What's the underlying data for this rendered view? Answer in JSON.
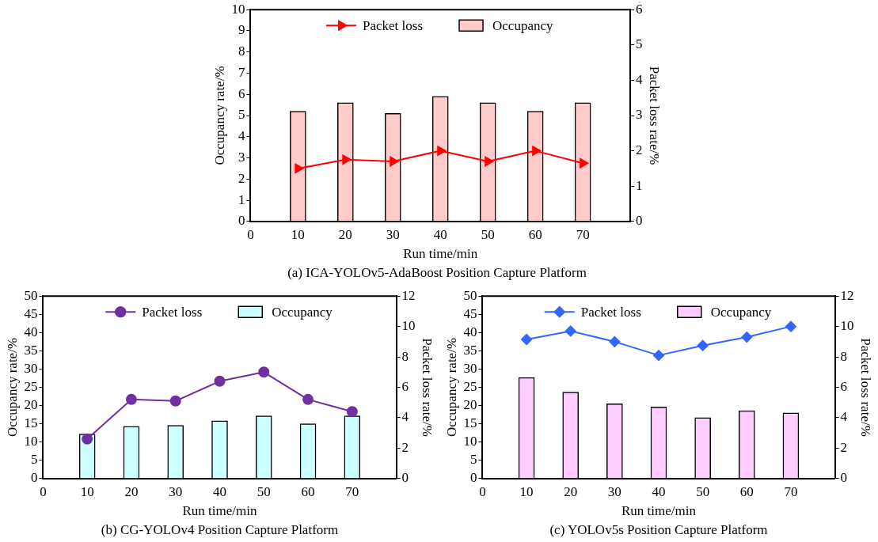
{
  "chart_data": [
    {
      "type": "bar",
      "title": "(a) ICA-YOLOv5-AdaBoost Position Capture Platform",
      "xlabel": "Run time/min",
      "ylabel": "Occupancy rate/%",
      "y2label": "Packet loss rate/%",
      "x": [
        10,
        20,
        30,
        40,
        50,
        60,
        70
      ],
      "series": [
        {
          "name": "Packet loss",
          "type": "line",
          "axis": "y2",
          "marker": "triangle",
          "color": "#ff0000",
          "values": [
            1.5,
            1.75,
            1.7,
            2.0,
            1.7,
            2.0,
            1.65
          ]
        },
        {
          "name": "Occupancy",
          "color": "#ffcccc",
          "values": [
            5.2,
            5.6,
            5.1,
            5.9,
            5.6,
            5.2,
            5.6
          ]
        }
      ],
      "xlim": [
        0,
        80
      ],
      "xticks": [
        0,
        10,
        20,
        30,
        40,
        50,
        60,
        70
      ],
      "ylim": [
        0,
        10
      ],
      "yticks": [
        0,
        1,
        2,
        3,
        4,
        5,
        6,
        7,
        8,
        9,
        10
      ],
      "y2lim": [
        0,
        6
      ],
      "y2ticks": [
        0,
        1,
        2,
        3,
        4,
        5,
        6
      ],
      "legend": "top"
    },
    {
      "type": "bar",
      "title": "(b) CG-YOLOv4 Position Capture Platform",
      "xlabel": "Run time/min",
      "ylabel": "Occupancy rate/%",
      "y2label": "Packet loss rate/%",
      "x": [
        10,
        20,
        30,
        40,
        50,
        60,
        70
      ],
      "series": [
        {
          "name": "Packet loss",
          "type": "line",
          "axis": "y2",
          "marker": "circle",
          "color": "#7030a0",
          "values": [
            2.6,
            5.2,
            5.1,
            6.4,
            7.0,
            5.2,
            4.4
          ]
        },
        {
          "name": "Occupancy",
          "color": "#ccffff",
          "values": [
            12.2,
            14.3,
            14.6,
            15.8,
            17.2,
            15.0,
            17.2
          ]
        }
      ],
      "xlim": [
        0,
        80
      ],
      "xticks": [
        0,
        10,
        20,
        30,
        40,
        50,
        60,
        70
      ],
      "ylim": [
        0,
        50
      ],
      "yticks": [
        0,
        5,
        10,
        15,
        20,
        25,
        30,
        35,
        40,
        45,
        50
      ],
      "y2lim": [
        0,
        12
      ],
      "y2ticks": [
        0,
        2,
        4,
        6,
        8,
        10,
        12
      ],
      "legend": "top"
    },
    {
      "type": "bar",
      "title": "(c) YOLOv5s Position Capture Platform",
      "xlabel": "Run time/min",
      "ylabel": "Occupancy rate/%",
      "y2label": "Packet loss rate/%",
      "x": [
        10,
        20,
        30,
        40,
        50,
        60,
        70
      ],
      "series": [
        {
          "name": "Packet loss",
          "type": "line",
          "axis": "y2",
          "marker": "diamond",
          "color": "#3366ff",
          "values": [
            9.15,
            9.7,
            9.0,
            8.1,
            8.75,
            9.3,
            10.0
          ]
        },
        {
          "name": "Occupancy",
          "color": "#ffccff",
          "values": [
            27.7,
            23.7,
            20.5,
            19.6,
            16.7,
            18.6,
            18.0
          ]
        }
      ],
      "xlim": [
        0,
        80
      ],
      "xticks": [
        0,
        10,
        20,
        30,
        40,
        50,
        60,
        70
      ],
      "ylim": [
        0,
        50
      ],
      "yticks": [
        0,
        5,
        10,
        15,
        20,
        25,
        30,
        35,
        40,
        45,
        50
      ],
      "y2lim": [
        0,
        12
      ],
      "y2ticks": [
        0,
        2,
        4,
        6,
        8,
        10,
        12
      ],
      "legend": "top"
    }
  ]
}
